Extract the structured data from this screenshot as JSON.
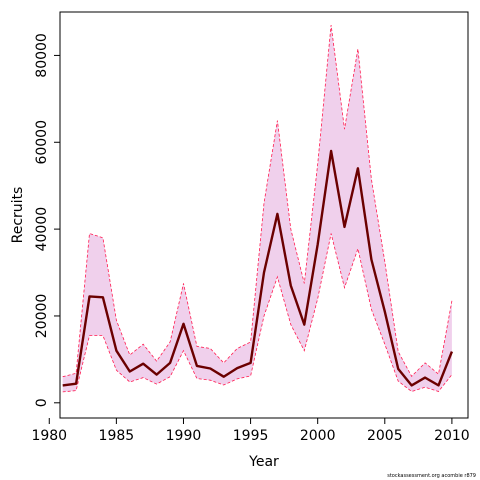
{
  "chart_data": {
    "type": "line",
    "title": "",
    "xlabel": "Year",
    "ylabel": "Recruits",
    "xlim": [
      1980.8,
      2011.2
    ],
    "ylim": [
      -3500,
      90000
    ],
    "x_ticks": [
      1980,
      1985,
      1990,
      1995,
      2000,
      2005,
      2010
    ],
    "y_ticks": [
      0,
      20000,
      40000,
      60000,
      80000
    ],
    "x_tick_labels": [
      "1980",
      "1985",
      "1990",
      "1995",
      "2000",
      "2005",
      "2010"
    ],
    "y_tick_labels": [
      "0",
      "20000",
      "40000",
      "60000",
      "80000"
    ],
    "grid": false,
    "legend": "none",
    "x": [
      1981,
      1982,
      1983,
      1984,
      1985,
      1986,
      1987,
      1988,
      1989,
      1990,
      1991,
      1992,
      1993,
      1994,
      1995,
      1996,
      1997,
      1998,
      1999,
      2000,
      2001,
      2002,
      2003,
      2004,
      2005,
      2006,
      2007,
      2008,
      2009,
      2010
    ],
    "series": [
      {
        "values": [
          4000,
          4400,
          24500,
          24300,
          12000,
          7200,
          9000,
          6500,
          9200,
          18200,
          8500,
          7900,
          6000,
          8000,
          9200,
          30000,
          43500,
          27000,
          18000,
          36500,
          58000,
          40500,
          54000,
          33000,
          21000,
          7800,
          4000,
          5800,
          4000,
          11800
        ],
        "lower": [
          2500,
          2800,
          15500,
          15500,
          7500,
          4800,
          5800,
          4300,
          6000,
          12000,
          5600,
          5200,
          4100,
          5500,
          6200,
          20000,
          29000,
          18000,
          12000,
          24000,
          39000,
          26500,
          35500,
          21500,
          13500,
          5000,
          2600,
          3600,
          2600,
          6500
        ],
        "upper": [
          6000,
          6800,
          39000,
          38000,
          19000,
          11000,
          13500,
          9600,
          14000,
          27500,
          13000,
          12500,
          9200,
          12500,
          14000,
          46000,
          65000,
          40000,
          27500,
          55000,
          87000,
          63000,
          81500,
          51500,
          32500,
          11800,
          6100,
          9200,
          6600,
          23500
        ]
      }
    ],
    "colors": {
      "estimate_line": "#6b0000",
      "interval_fill": "#f0d0ec",
      "interval_border": "#ff1a4f"
    },
    "footnote": "stockassessment.org acombie r879"
  }
}
